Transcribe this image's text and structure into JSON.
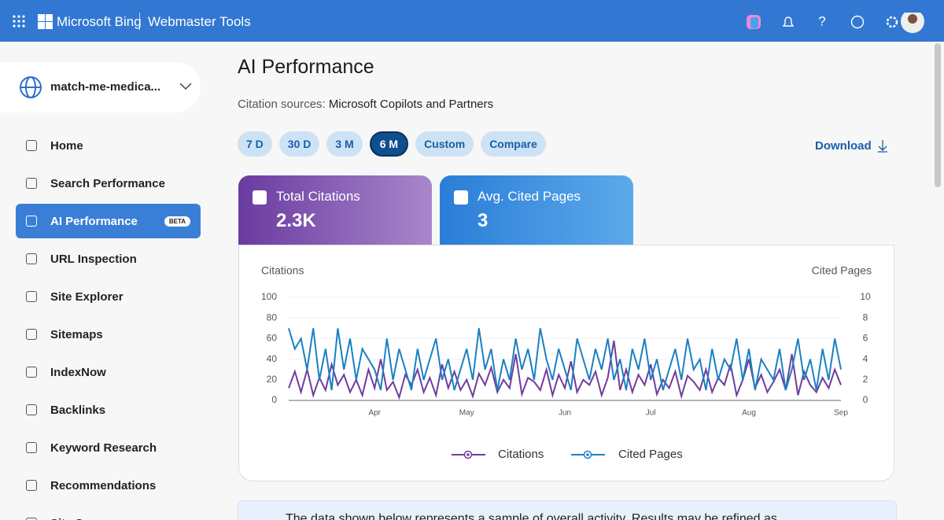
{
  "header": {
    "brand": "Microsoft Bing",
    "product": "Webmaster Tools"
  },
  "sidebar": {
    "site": "match-me-medica...",
    "badge": "BETA",
    "items": [
      "Home",
      "Search Performance",
      "AI Performance",
      "URL Inspection",
      "Site Explorer",
      "Sitemaps",
      "IndexNow",
      "Backlinks",
      "Keyword Research",
      "Recommendations",
      "Site Scan"
    ]
  },
  "main": {
    "title": "AI Performance",
    "citation_label": "Citation sources:",
    "citation_value": "Microsoft Copilots and Partners",
    "ranges": [
      "7 D",
      "30 D",
      "3 M",
      "6 M",
      "Custom",
      "Compare"
    ],
    "download": "Download",
    "cards": [
      {
        "label": "Total Citations",
        "value": "2.3K"
      },
      {
        "label": "Avg. Cited Pages",
        "value": "3"
      }
    ],
    "notice": "The data shown below represents a sample of overall activity. Results may be refined as"
  },
  "chart_data": {
    "type": "line",
    "y_label": "Citations",
    "y2_label": "Cited Pages",
    "categories": [
      null,
      null,
      null,
      null,
      null,
      null,
      null,
      null,
      null,
      null,
      null,
      null,
      null,
      null,
      "Apr",
      null,
      null,
      null,
      null,
      null,
      null,
      null,
      null,
      null,
      null,
      null,
      null,
      null,
      null,
      "May",
      null,
      null,
      null,
      null,
      null,
      null,
      null,
      null,
      null,
      null,
      null,
      null,
      null,
      null,
      null,
      "Jun",
      null,
      null,
      null,
      null,
      null,
      null,
      null,
      null,
      null,
      null,
      null,
      null,
      null,
      "Jul",
      null,
      null,
      null,
      null,
      null,
      null,
      null,
      null,
      null,
      null,
      null,
      null,
      null,
      null,
      null,
      "Aug",
      null,
      null,
      null,
      null,
      null,
      null,
      null,
      null,
      null,
      null,
      null,
      null,
      null,
      null,
      "Sep"
    ],
    "series": [
      {
        "name": "Citations",
        "color": "#6f3d9e",
        "values": [
          12,
          28,
          8,
          30,
          5,
          22,
          10,
          35,
          15,
          25,
          8,
          20,
          5,
          30,
          12,
          40,
          10,
          18,
          3,
          25,
          15,
          30,
          8,
          22,
          5,
          35,
          12,
          28,
          10,
          20,
          4,
          26,
          15,
          32,
          8,
          20,
          12,
          45,
          6,
          22,
          18,
          10,
          30,
          5,
          25,
          12,
          38,
          8,
          20,
          15,
          28,
          5,
          22,
          58,
          10,
          30,
          8,
          25,
          15,
          35,
          6,
          20,
          12,
          28,
          4,
          24,
          18,
          10,
          30,
          8,
          22,
          15,
          35,
          5,
          20,
          40,
          12,
          25,
          8,
          18,
          30,
          10,
          45,
          5,
          28,
          15,
          8,
          22,
          12,
          30,
          15
        ]
      },
      {
        "name": "Cited Pages",
        "color": "#1b80c4",
        "axis": "y2",
        "values": [
          7,
          5,
          6,
          3,
          7,
          2,
          5,
          1,
          7,
          3,
          6,
          2,
          5,
          4,
          3,
          1,
          6,
          2,
          5,
          3,
          1,
          5,
          2,
          4,
          6,
          2,
          4,
          1,
          3,
          5,
          2,
          7,
          3,
          5,
          1,
          4,
          2,
          6,
          3,
          5,
          2,
          7,
          4,
          2,
          5,
          3,
          1,
          6,
          4,
          2,
          5,
          3,
          6,
          2,
          4,
          1,
          5,
          3,
          6,
          2,
          4,
          1,
          3,
          5,
          2,
          6,
          3,
          4,
          1,
          5,
          2,
          4,
          3,
          6,
          2,
          5,
          1,
          4,
          3,
          2,
          5,
          1,
          3,
          6,
          2,
          4,
          1,
          5,
          2,
          6,
          3
        ]
      }
    ],
    "ylim": [
      0,
      100
    ],
    "yticks": [
      0,
      20,
      40,
      60,
      80,
      100
    ],
    "y2lim": [
      0,
      10
    ],
    "y2ticks": [
      0,
      2,
      4,
      6,
      8,
      10
    ],
    "grid": true
  }
}
